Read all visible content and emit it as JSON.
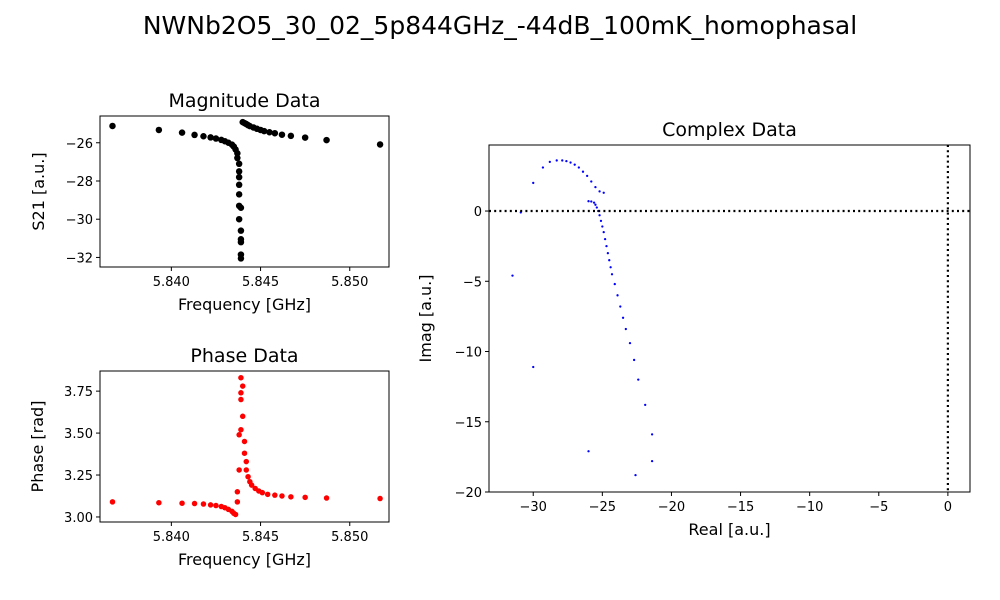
{
  "figure": {
    "title": "NWNb2O5_30_02_5p844GHz_-44dB_100mK_homophasal"
  },
  "chart_data": [
    {
      "id": "magnitude",
      "type": "scatter",
      "title": "Magnitude Data",
      "xlabel": "Frequency [GHz]",
      "ylabel": "S21 [a.u.]",
      "xlim": [
        5.836,
        5.8522
      ],
      "ylim": [
        -32.5,
        -24.6
      ],
      "xticks": [
        5.84,
        5.845,
        5.85
      ],
      "xtick_labels": [
        "5.840",
        "5.845",
        "5.850"
      ],
      "yticks": [
        -32,
        -30,
        -28,
        -26
      ],
      "ytick_labels": [
        "−32",
        "−30",
        "−28",
        "−26"
      ],
      "color": "#000000",
      "points": [
        [
          5.8367,
          -25.12
        ],
        [
          5.8393,
          -25.33
        ],
        [
          5.8406,
          -25.47
        ],
        [
          5.8413,
          -25.59
        ],
        [
          5.8418,
          -25.66
        ],
        [
          5.8422,
          -25.72
        ],
        [
          5.8425,
          -25.78
        ],
        [
          5.8428,
          -25.85
        ],
        [
          5.843,
          -25.92
        ],
        [
          5.8432,
          -26.0
        ],
        [
          5.8434,
          -26.1
        ],
        [
          5.8435,
          -26.2
        ],
        [
          5.8436,
          -26.35
        ],
        [
          5.8437,
          -26.55
        ],
        [
          5.8437,
          -26.8
        ],
        [
          5.8438,
          -27.1
        ],
        [
          5.8438,
          -27.5
        ],
        [
          5.8438,
          -27.8
        ],
        [
          5.8438,
          -28.2
        ],
        [
          5.8438,
          -28.7
        ],
        [
          5.8438,
          -29.3
        ],
        [
          5.8438,
          -30.0
        ],
        [
          5.8439,
          -30.6
        ],
        [
          5.8439,
          -31.05
        ],
        [
          5.8439,
          -31.2
        ],
        [
          5.8439,
          -31.85
        ],
        [
          5.8439,
          -32.05
        ],
        [
          5.8439,
          -29.4
        ],
        [
          5.844,
          -24.92
        ],
        [
          5.8441,
          -24.97
        ],
        [
          5.8442,
          -25.02
        ],
        [
          5.8443,
          -25.08
        ],
        [
          5.8444,
          -25.13
        ],
        [
          5.8446,
          -25.2
        ],
        [
          5.8448,
          -25.27
        ],
        [
          5.845,
          -25.33
        ],
        [
          5.8452,
          -25.39
        ],
        [
          5.8455,
          -25.45
        ],
        [
          5.8458,
          -25.5
        ],
        [
          5.8462,
          -25.58
        ],
        [
          5.8467,
          -25.64
        ],
        [
          5.8475,
          -25.73
        ],
        [
          5.8487,
          -25.86
        ],
        [
          5.8517,
          -26.09
        ]
      ]
    },
    {
      "id": "phase",
      "type": "scatter",
      "title": "Phase Data",
      "xlabel": "Frequency [GHz]",
      "ylabel": "Phase [rad]",
      "xlim": [
        5.836,
        5.8522
      ],
      "ylim": [
        2.97,
        3.87
      ],
      "xticks": [
        5.84,
        5.845,
        5.85
      ],
      "xtick_labels": [
        "5.840",
        "5.845",
        "5.850"
      ],
      "yticks": [
        3.0,
        3.25,
        3.5,
        3.75
      ],
      "ytick_labels": [
        "3.00",
        "3.25",
        "3.50",
        "3.75"
      ],
      "color": "#ff0000",
      "points": [
        [
          5.8367,
          3.09
        ],
        [
          5.8393,
          3.085
        ],
        [
          5.8406,
          3.082
        ],
        [
          5.8413,
          3.08
        ],
        [
          5.8418,
          3.077
        ],
        [
          5.8422,
          3.072
        ],
        [
          5.8425,
          3.068
        ],
        [
          5.8428,
          3.062
        ],
        [
          5.843,
          3.055
        ],
        [
          5.8432,
          3.045
        ],
        [
          5.8434,
          3.033
        ],
        [
          5.8435,
          3.022
        ],
        [
          5.8436,
          3.015
        ],
        [
          5.8437,
          3.09
        ],
        [
          5.8437,
          3.15
        ],
        [
          5.8438,
          3.28
        ],
        [
          5.8438,
          3.49
        ],
        [
          5.8439,
          3.52
        ],
        [
          5.8439,
          3.7
        ],
        [
          5.8439,
          3.74
        ],
        [
          5.8439,
          3.83
        ],
        [
          5.844,
          3.78
        ],
        [
          5.844,
          3.6
        ],
        [
          5.8441,
          3.45
        ],
        [
          5.8441,
          3.38
        ],
        [
          5.8442,
          3.33
        ],
        [
          5.8442,
          3.28
        ],
        [
          5.8443,
          3.24
        ],
        [
          5.8444,
          3.21
        ],
        [
          5.8445,
          3.19
        ],
        [
          5.8447,
          3.17
        ],
        [
          5.8449,
          3.155
        ],
        [
          5.8451,
          3.145
        ],
        [
          5.8454,
          3.135
        ],
        [
          5.8458,
          3.13
        ],
        [
          5.8462,
          3.125
        ],
        [
          5.8467,
          3.12
        ],
        [
          5.8475,
          3.117
        ],
        [
          5.8487,
          3.113
        ],
        [
          5.8517,
          3.11
        ]
      ]
    },
    {
      "id": "complex",
      "type": "scatter",
      "title": "Complex Data",
      "xlabel": "Real [a.u.]",
      "ylabel": "Imag [a.u.]",
      "xlim": [
        -33.2,
        1.6
      ],
      "ylim": [
        -20.0,
        4.7
      ],
      "xticks": [
        -30,
        -25,
        -20,
        -15,
        -10,
        -5,
        0
      ],
      "xtick_labels": [
        "−30",
        "−25",
        "−20",
        "−15",
        "−10",
        "−5",
        "0"
      ],
      "yticks": [
        -20,
        -15,
        -10,
        -5,
        0
      ],
      "ytick_labels": [
        "−20",
        "−15",
        "−10",
        "−5",
        "0"
      ],
      "color": "#0000ff",
      "hlines": [
        0
      ],
      "vlines": [
        0
      ],
      "points": [
        [
          -31.5,
          -4.6
        ],
        [
          -30.9,
          -0.1
        ],
        [
          -30.0,
          2.0
        ],
        [
          -30.0,
          -11.1
        ],
        [
          -29.3,
          3.1
        ],
        [
          -28.8,
          3.5
        ],
        [
          -28.3,
          3.6
        ],
        [
          -27.9,
          3.6
        ],
        [
          -27.6,
          3.55
        ],
        [
          -27.3,
          3.45
        ],
        [
          -27.0,
          3.3
        ],
        [
          -26.7,
          3.1
        ],
        [
          -26.4,
          2.8
        ],
        [
          -26.1,
          2.5
        ],
        [
          -25.8,
          2.1
        ],
        [
          -25.5,
          1.7
        ],
        [
          -25.2,
          1.4
        ],
        [
          -24.9,
          1.3
        ],
        [
          -26.0,
          0.7
        ],
        [
          -25.8,
          0.68
        ],
        [
          -25.6,
          0.6
        ],
        [
          -25.5,
          0.45
        ],
        [
          -25.4,
          0.25
        ],
        [
          -25.3,
          0.0
        ],
        [
          -25.2,
          -0.3
        ],
        [
          -25.1,
          -0.7
        ],
        [
          -25.0,
          -1.1
        ],
        [
          -24.9,
          -1.5
        ],
        [
          -24.8,
          -2.0
        ],
        [
          -24.7,
          -2.5
        ],
        [
          -24.6,
          -3.0
        ],
        [
          -24.5,
          -3.5
        ],
        [
          -24.4,
          -4.0
        ],
        [
          -24.3,
          -4.5
        ],
        [
          -24.1,
          -5.2
        ],
        [
          -23.9,
          -6.0
        ],
        [
          -23.7,
          -6.8
        ],
        [
          -23.5,
          -7.6
        ],
        [
          -23.3,
          -8.4
        ],
        [
          -23.0,
          -9.4
        ],
        [
          -22.7,
          -10.6
        ],
        [
          -22.4,
          -12.0
        ],
        [
          -21.9,
          -13.8
        ],
        [
          -21.4,
          -15.9
        ],
        [
          -21.4,
          -17.8
        ],
        [
          -22.6,
          -18.8
        ],
        [
          -26.0,
          -17.1
        ]
      ]
    }
  ]
}
